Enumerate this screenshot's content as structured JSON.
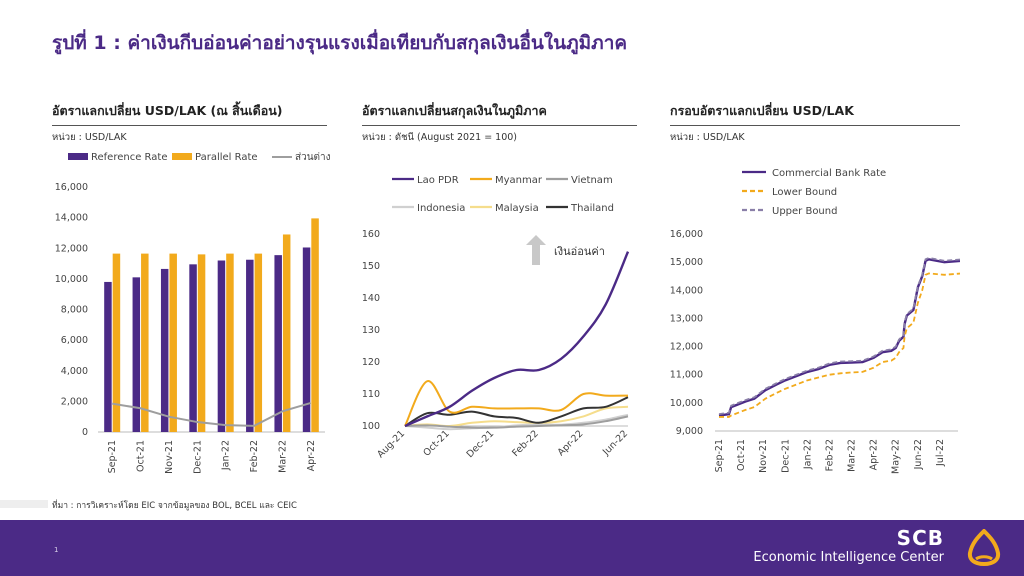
{
  "slide": {
    "title": "รูปที่ 1 : ค่าเงินกีบอ่อนค่าอย่างรุนแรงเมื่อเทียบกับสกุลเงินอื่นในภูมิภาค",
    "source": "ที่มา : การวิเคราะห์โดย EIC จากข้อมูลของ BOL, BCEL และ CEIC",
    "page_number": "1",
    "brand_name": "SCB",
    "brand_subtitle": "Economic Intelligence Center",
    "accent_color": "#4b2a86",
    "logo_icon": "scb-shell-logo-icon"
  },
  "chart_data": [
    {
      "type": "bar",
      "title": "อัตราแลกเปลี่ยน USD/LAK (ณ สิ้นเดือน)",
      "unit": "หน่วย : USD/LAK",
      "categories": [
        "Sep-21",
        "Oct-21",
        "Nov-21",
        "Dec-21",
        "Jan-22",
        "Feb-22",
        "Mar-22",
        "Apr-22"
      ],
      "series": [
        {
          "name": "Reference Rate",
          "type": "bar",
          "color": "#4b2a86",
          "values": [
            9800,
            10100,
            10650,
            10950,
            11200,
            11250,
            11550,
            12050
          ]
        },
        {
          "name": "Parallel Rate",
          "type": "bar",
          "color": "#f2aa1c",
          "values": [
            11650,
            11650,
            11650,
            11600,
            11650,
            11650,
            12900,
            13950
          ]
        },
        {
          "name": "ส่วนต่าง",
          "type": "line",
          "color": "#9e9e9e",
          "values": [
            1850,
            1550,
            1000,
            650,
            450,
            400,
            1350,
            1900
          ]
        }
      ],
      "yticks": [
        "0",
        "2,000",
        "4,000",
        "6,000",
        "8,000",
        "10,000",
        "12,000",
        "14,000",
        "16,000"
      ],
      "ylim": [
        0,
        16000
      ],
      "legend_position": "top"
    },
    {
      "type": "line",
      "title": "อัตราแลกเปลี่ยนสกุลเงินในภูมิภาค",
      "unit": "หน่วย : ดัชนี (August 2021 = 100)",
      "x": [
        "Aug-21",
        "Sep-21",
        "Oct-21",
        "Nov-21",
        "Dec-21",
        "Jan-22",
        "Feb-22",
        "Mar-22",
        "Apr-22",
        "May-22",
        "Jun-22"
      ],
      "xticks": [
        "Aug-21",
        "Oct-21",
        "Dec-21",
        "Feb-22",
        "Apr-22",
        "Jun-22"
      ],
      "series": [
        {
          "name": "Lao PDR",
          "color": "#4b2a86",
          "values": [
            100,
            103,
            106,
            111,
            115,
            117.5,
            117.5,
            121,
            128,
            138,
            154.5
          ]
        },
        {
          "name": "Myanmar",
          "color": "#f2aa1c",
          "values": [
            100,
            114,
            104.5,
            106,
            105.5,
            105.5,
            105.5,
            105,
            110,
            109.5,
            109.5
          ]
        },
        {
          "name": "Vietnam",
          "color": "#9e9e9e",
          "values": [
            100,
            100.2,
            99.8,
            99.5,
            99.5,
            99.8,
            100,
            100.2,
            100.5,
            101.5,
            103
          ]
        },
        {
          "name": "Indonesia",
          "color": "#d0d0d0",
          "values": [
            100,
            99.5,
            99,
            99.3,
            99.6,
            100.2,
            100.5,
            100.4,
            101,
            102,
            103.5
          ]
        },
        {
          "name": "Malaysia",
          "color": "#f5dd8c",
          "values": [
            100,
            100.5,
            100,
            101,
            101.5,
            101.2,
            101,
            101.5,
            103,
            105.5,
            106
          ]
        },
        {
          "name": "Thailand",
          "color": "#333333",
          "values": [
            100,
            104,
            103.5,
            104.5,
            103,
            102.5,
            101,
            103,
            105.5,
            106,
            109
          ]
        }
      ],
      "yticks": [
        "100",
        "110",
        "120",
        "130",
        "140",
        "150",
        "160"
      ],
      "ylim": [
        100,
        160
      ],
      "annotation": "เงินอ่อนค่า",
      "annotation_icon": "up-arrow-icon",
      "legend_position": "top"
    },
    {
      "type": "line",
      "title": "กรอบอัตราแลกเปลี่ยน USD/LAK",
      "unit": "หน่วย : USD/LAK",
      "x": [
        "Sep-21",
        "Oct-21",
        "Nov-21",
        "Dec-21",
        "Jan-22",
        "Feb-22",
        "Mar-22",
        "Apr-22",
        "May-22",
        "Jun-22",
        "Jul-22"
      ],
      "xticks": [
        "Sep-21",
        "Oct-21",
        "Nov-21",
        "Dec-21",
        "Jan-22",
        "Feb-22",
        "Mar-22",
        "Apr-22",
        "May-22",
        "Jun-22",
        "Jul-22"
      ],
      "series": [
        {
          "name": "Commercial Bank Rate",
          "color": "#4b2a86",
          "dash": "solid",
          "points": [
            [
              0,
              9550
            ],
            [
              0.45,
              9600
            ],
            [
              0.55,
              9850
            ],
            [
              1.2,
              10050
            ],
            [
              1.6,
              10150
            ],
            [
              2.1,
              10450
            ],
            [
              2.6,
              10650
            ],
            [
              3.0,
              10800
            ],
            [
              3.5,
              10950
            ],
            [
              4.0,
              11100
            ],
            [
              4.5,
              11200
            ],
            [
              5.0,
              11350
            ],
            [
              5.5,
              11420
            ],
            [
              6.0,
              11430
            ],
            [
              6.5,
              11450
            ],
            [
              7.0,
              11600
            ],
            [
              7.4,
              11800
            ],
            [
              7.8,
              11850
            ],
            [
              8.0,
              11950
            ],
            [
              8.15,
              12200
            ],
            [
              8.35,
              12350
            ],
            [
              8.4,
              12800
            ],
            [
              8.5,
              13100
            ],
            [
              8.8,
              13300
            ],
            [
              8.9,
              13700
            ],
            [
              9.0,
              14100
            ],
            [
              9.2,
              14500
            ],
            [
              9.35,
              15050
            ],
            [
              9.5,
              15100
            ],
            [
              10.2,
              15000
            ],
            [
              11.0,
              15050
            ]
          ]
        },
        {
          "name": "Lower Bound",
          "color": "#f2aa1c",
          "dash": "dashed",
          "points": [
            [
              0,
              9500
            ],
            [
              0.45,
              9500
            ],
            [
              0.55,
              9550
            ],
            [
              1.2,
              9750
            ],
            [
              1.6,
              9850
            ],
            [
              2.1,
              10150
            ],
            [
              2.6,
              10350
            ],
            [
              3.0,
              10500
            ],
            [
              3.5,
              10650
            ],
            [
              4.0,
              10800
            ],
            [
              4.5,
              10900
            ],
            [
              5.0,
              11000
            ],
            [
              5.5,
              11050
            ],
            [
              6.0,
              11080
            ],
            [
              6.5,
              11100
            ],
            [
              7.0,
              11250
            ],
            [
              7.4,
              11450
            ],
            [
              7.8,
              11500
            ],
            [
              8.0,
              11600
            ],
            [
              8.15,
              11800
            ],
            [
              8.35,
              11950
            ],
            [
              8.4,
              12350
            ],
            [
              8.5,
              12650
            ],
            [
              8.8,
              12850
            ],
            [
              8.9,
              13200
            ],
            [
              9.0,
              13550
            ],
            [
              9.2,
              14000
            ],
            [
              9.35,
              14550
            ],
            [
              9.5,
              14600
            ],
            [
              10.2,
              14550
            ],
            [
              11.0,
              14600
            ]
          ]
        },
        {
          "name": "Upper Bound",
          "color": "#8a7fa8",
          "dash": "dashed",
          "points": [
            [
              0,
              9600
            ],
            [
              0.45,
              9650
            ],
            [
              0.55,
              9900
            ],
            [
              1.2,
              10100
            ],
            [
              1.6,
              10200
            ],
            [
              2.1,
              10500
            ],
            [
              2.6,
              10700
            ],
            [
              3.0,
              10850
            ],
            [
              3.5,
              11000
            ],
            [
              4.0,
              11150
            ],
            [
              4.5,
              11250
            ],
            [
              5.0,
              11400
            ],
            [
              5.5,
              11470
            ],
            [
              6.0,
              11480
            ],
            [
              6.5,
              11500
            ],
            [
              7.0,
              11650
            ],
            [
              7.4,
              11850
            ],
            [
              7.8,
              11900
            ],
            [
              8.0,
              12000
            ],
            [
              8.15,
              12250
            ],
            [
              8.35,
              12400
            ],
            [
              8.4,
              12850
            ],
            [
              8.5,
              13150
            ],
            [
              8.8,
              13350
            ],
            [
              8.9,
              13750
            ],
            [
              9.0,
              14150
            ],
            [
              9.2,
              14550
            ],
            [
              9.35,
              15100
            ],
            [
              9.5,
              15150
            ],
            [
              10.2,
              15050
            ],
            [
              11.0,
              15100
            ]
          ]
        }
      ],
      "yticks": [
        "9,000",
        "10,000",
        "11,000",
        "12,000",
        "13,000",
        "14,000",
        "15,000",
        "16,000"
      ],
      "ylim": [
        9000,
        16000
      ],
      "legend_position": "top-left"
    }
  ]
}
